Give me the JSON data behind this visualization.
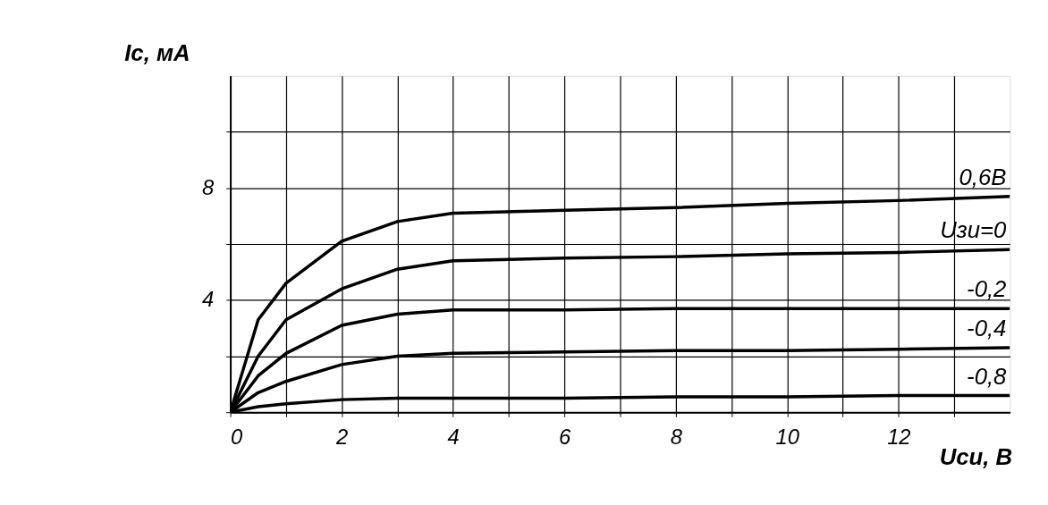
{
  "chart_data": {
    "type": "line",
    "xlabel": "Uси, В",
    "ylabel": "Iс, мА",
    "x": [
      0,
      0.5,
      1,
      2,
      3,
      4,
      6,
      8,
      10,
      12,
      14
    ],
    "series": [
      {
        "name": "0,6В",
        "color": "#000000",
        "values": [
          0,
          3.3,
          4.6,
          6.1,
          6.8,
          7.1,
          7.2,
          7.3,
          7.45,
          7.55,
          7.7
        ]
      },
      {
        "name": "Uзи=0",
        "color": "#000000",
        "values": [
          0,
          2.0,
          3.3,
          4.4,
          5.1,
          5.4,
          5.5,
          5.55,
          5.65,
          5.7,
          5.8
        ]
      },
      {
        "name": "-0,2",
        "color": "#000000",
        "values": [
          0,
          1.3,
          2.1,
          3.1,
          3.5,
          3.65,
          3.65,
          3.7,
          3.7,
          3.7,
          3.7
        ]
      },
      {
        "name": "-0,4",
        "color": "#000000",
        "values": [
          0,
          0.7,
          1.1,
          1.7,
          2.0,
          2.1,
          2.15,
          2.2,
          2.2,
          2.25,
          2.3
        ]
      },
      {
        "name": "-0,8",
        "color": "#000000",
        "values": [
          0,
          0.2,
          0.3,
          0.45,
          0.5,
          0.5,
          0.5,
          0.55,
          0.55,
          0.6,
          0.6
        ]
      }
    ],
    "xlim": [
      0,
      14
    ],
    "ylim": [
      0,
      12
    ],
    "xticks": [
      0,
      {
        "value": 1,
        "label": null
      },
      2,
      {
        "value": 3,
        "label": null
      },
      4,
      {
        "value": 5,
        "label": null
      },
      6,
      {
        "value": 7,
        "label": null
      },
      8,
      {
        "value": 9,
        "label": null
      },
      10,
      {
        "value": 11,
        "label": null
      },
      12,
      {
        "value": 13,
        "label": null
      }
    ],
    "yticks": [
      {
        "value": 0,
        "label": null
      },
      {
        "value": 2,
        "label": null
      },
      4,
      {
        "value": 6,
        "label": null
      },
      8,
      {
        "value": 10,
        "label": null
      }
    ],
    "grid": true,
    "marker": "none",
    "line_style": "solid",
    "legend": false
  }
}
